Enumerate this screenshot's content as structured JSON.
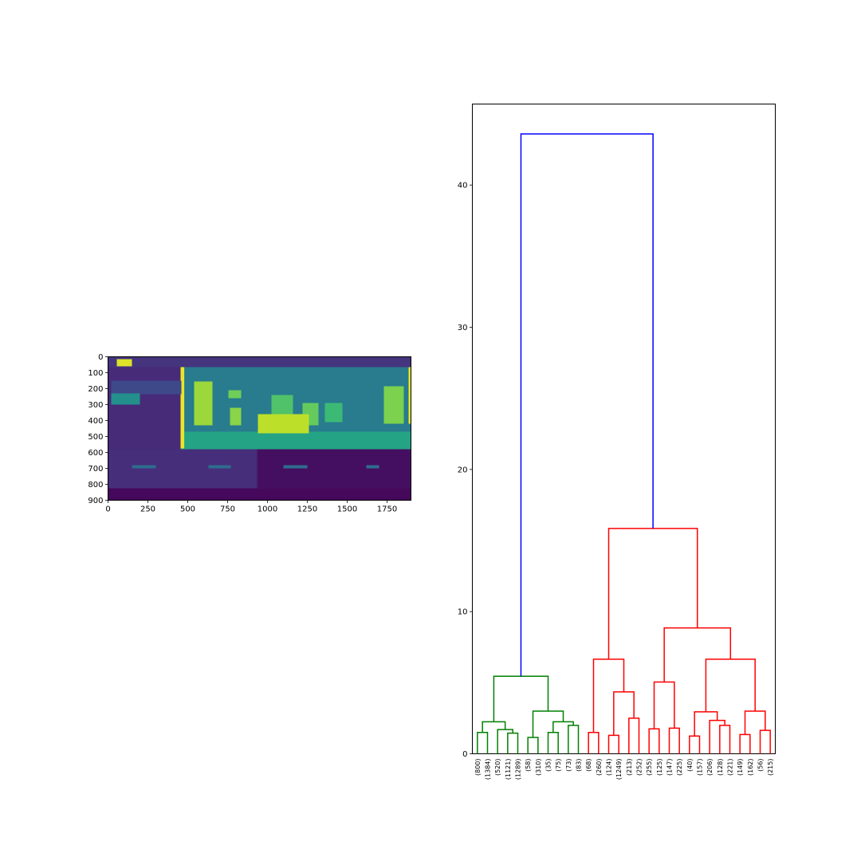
{
  "chart_data": [
    {
      "type": "heatmap",
      "colormap": "viridis",
      "xlim": [
        0,
        1900
      ],
      "ylim": [
        900,
        0
      ],
      "xticks": [
        "0",
        "250",
        "500",
        "750",
        "1000",
        "1250",
        "1500",
        "1750"
      ],
      "yticks": [
        "0",
        "100",
        "200",
        "300",
        "400",
        "500",
        "600",
        "700",
        "800",
        "900"
      ],
      "regions": [
        {
          "x0": 0,
          "x1": 1900,
          "y0": 0,
          "y1": 65,
          "value": 0.15
        },
        {
          "x0": 0,
          "x1": 455,
          "y0": 65,
          "y1": 580,
          "value": 0.12
        },
        {
          "x0": 455,
          "x1": 1900,
          "y0": 65,
          "y1": 470,
          "value": 0.42
        },
        {
          "x0": 455,
          "x1": 1900,
          "y0": 470,
          "y1": 580,
          "value": 0.58
        },
        {
          "x0": 0,
          "x1": 935,
          "y0": 580,
          "y1": 825,
          "value": 0.13
        },
        {
          "x0": 935,
          "x1": 1900,
          "y0": 580,
          "y1": 825,
          "value": 0.04
        },
        {
          "x0": 0,
          "x1": 1900,
          "y0": 825,
          "y1": 900,
          "value": 0.02
        },
        {
          "x0": 55,
          "x1": 150,
          "y0": 15,
          "y1": 60,
          "value": 0.95
        },
        {
          "x0": 455,
          "x1": 478,
          "y0": 65,
          "y1": 575,
          "value": 0.97
        },
        {
          "x0": 1885,
          "x1": 1900,
          "y0": 65,
          "y1": 420,
          "value": 0.97
        },
        {
          "x0": 540,
          "x1": 655,
          "y0": 155,
          "y1": 430,
          "value": 0.85
        },
        {
          "x0": 755,
          "x1": 835,
          "y0": 210,
          "y1": 260,
          "value": 0.78
        },
        {
          "x0": 765,
          "x1": 835,
          "y0": 320,
          "y1": 430,
          "value": 0.82
        },
        {
          "x0": 1025,
          "x1": 1160,
          "y0": 240,
          "y1": 380,
          "value": 0.72
        },
        {
          "x0": 1220,
          "x1": 1320,
          "y0": 290,
          "y1": 430,
          "value": 0.76
        },
        {
          "x0": 1360,
          "x1": 1470,
          "y0": 290,
          "y1": 410,
          "value": 0.68
        },
        {
          "x0": 1730,
          "x1": 1855,
          "y0": 185,
          "y1": 420,
          "value": 0.8
        },
        {
          "x0": 940,
          "x1": 1260,
          "y0": 360,
          "y1": 480,
          "value": 0.9
        },
        {
          "x0": 20,
          "x1": 460,
          "y0": 150,
          "y1": 235,
          "value": 0.22
        },
        {
          "x0": 20,
          "x1": 200,
          "y0": 230,
          "y1": 300,
          "value": 0.5
        },
        {
          "x0": 150,
          "x1": 300,
          "y0": 680,
          "y1": 700,
          "value": 0.35
        },
        {
          "x0": 630,
          "x1": 770,
          "y0": 680,
          "y1": 700,
          "value": 0.35
        },
        {
          "x0": 1100,
          "x1": 1250,
          "y0": 680,
          "y1": 700,
          "value": 0.35
        },
        {
          "x0": 1620,
          "x1": 1700,
          "y0": 680,
          "y1": 700,
          "value": 0.35
        }
      ]
    },
    {
      "type": "dendrogram",
      "ylim": [
        0,
        45.7
      ],
      "yticks": [
        0,
        10,
        20,
        30,
        40
      ],
      "leaves": [
        "(800)",
        "(1384)",
        "(520)",
        "(1121)",
        "(1289)",
        "(58)",
        "(310)",
        "(35)",
        "(75)",
        "(73)",
        "(83)",
        "(68)",
        "(260)",
        "(124)",
        "(1249)",
        "(213)",
        "(252)",
        "(255)",
        "(125)",
        "(147)",
        "(225)",
        "(40)",
        "(157)",
        "(206)",
        "(128)",
        "(221)",
        "(149)",
        "(162)",
        "(56)",
        "(215)"
      ],
      "merges": [
        {
          "left": 0,
          "right": 1,
          "height": 1.5,
          "color": "#008000"
        },
        {
          "left": 3,
          "right": 4,
          "height": 1.45,
          "color": "#008000"
        },
        {
          "left": 2,
          "right": "m1",
          "height": 1.7,
          "color": "#008000"
        },
        {
          "left": "m0",
          "right": "m2",
          "height": 2.25,
          "color": "#008000"
        },
        {
          "left": 5,
          "right": 6,
          "height": 1.15,
          "color": "#008000"
        },
        {
          "left": 7,
          "right": 8,
          "height": 1.5,
          "color": "#008000"
        },
        {
          "left": 9,
          "right": 10,
          "height": 2.0,
          "color": "#008000"
        },
        {
          "left": "m5",
          "right": "m6",
          "height": 2.25,
          "color": "#008000"
        },
        {
          "left": "m4",
          "right": "m7",
          "height": 3.0,
          "color": "#008000"
        },
        {
          "left": "m3",
          "right": "m8",
          "height": 5.45,
          "color": "#008000"
        },
        {
          "left": 11,
          "right": 12,
          "height": 1.5,
          "color": "#ff0000"
        },
        {
          "left": 13,
          "right": 14,
          "height": 1.3,
          "color": "#ff0000"
        },
        {
          "left": 15,
          "right": 16,
          "height": 2.5,
          "color": "#ff0000"
        },
        {
          "left": "m11",
          "right": "m12",
          "height": 4.35,
          "color": "#ff0000"
        },
        {
          "left": "m10",
          "right": "m13",
          "height": 6.65,
          "color": "#ff0000"
        },
        {
          "left": 17,
          "right": 18,
          "height": 1.75,
          "color": "#ff0000"
        },
        {
          "left": 19,
          "right": 20,
          "height": 1.8,
          "color": "#ff0000"
        },
        {
          "left": "m15",
          "right": "m16",
          "height": 5.05,
          "color": "#ff0000"
        },
        {
          "left": 21,
          "right": 22,
          "height": 1.25,
          "color": "#ff0000"
        },
        {
          "left": 24,
          "right": 25,
          "height": 2.0,
          "color": "#ff0000"
        },
        {
          "left": 23,
          "right": "m19",
          "height": 2.35,
          "color": "#ff0000"
        },
        {
          "left": "m18",
          "right": "m20",
          "height": 2.95,
          "color": "#ff0000"
        },
        {
          "left": 26,
          "right": 27,
          "height": 1.35,
          "color": "#ff0000"
        },
        {
          "left": 28,
          "right": 29,
          "height": 1.65,
          "color": "#ff0000"
        },
        {
          "left": "m22",
          "right": "m23",
          "height": 3.0,
          "color": "#ff0000"
        },
        {
          "left": "m21",
          "right": "m24",
          "height": 6.65,
          "color": "#ff0000"
        },
        {
          "left": "m17",
          "right": "m25",
          "height": 8.85,
          "color": "#ff0000"
        },
        {
          "left": "m14",
          "right": "m26",
          "height": 15.85,
          "color": "#ff0000"
        },
        {
          "left": "m9",
          "right": "m27",
          "height": 43.6,
          "color": "#0000ff"
        }
      ]
    }
  ]
}
